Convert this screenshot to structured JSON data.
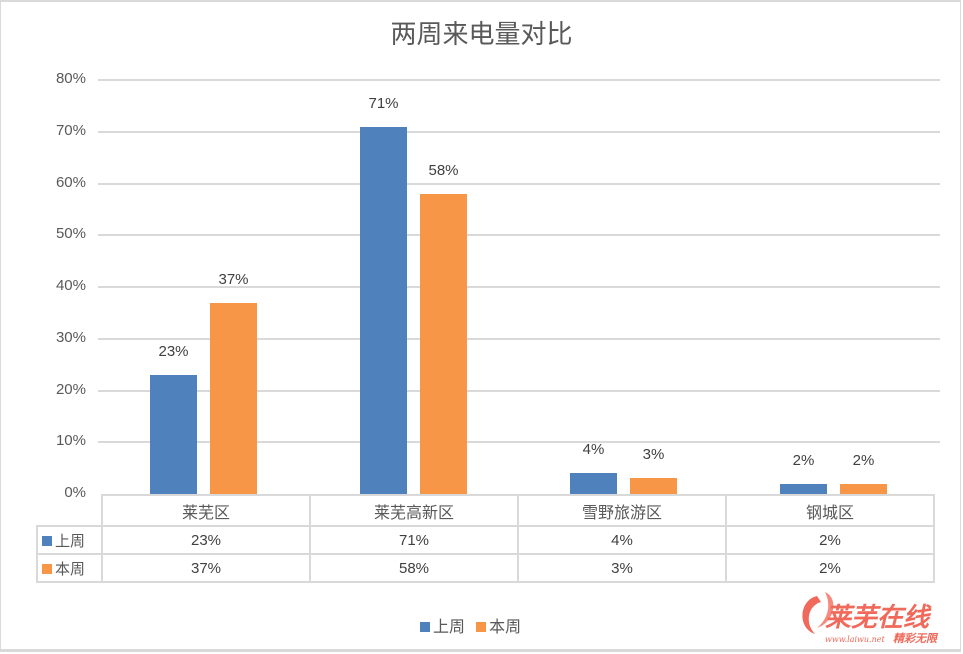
{
  "chart_data": {
    "type": "bar",
    "title": "两周来电量对比",
    "categories": [
      "莱芜区",
      "莱芜高新区",
      "雪野旅游区",
      "钢城区"
    ],
    "series": [
      {
        "name": "上周",
        "color": "#4F81BD",
        "values": [
          23,
          71,
          4,
          2
        ],
        "labels": [
          "23%",
          "71%",
          "4%",
          "2%"
        ]
      },
      {
        "name": "本周",
        "color": "#F79646",
        "values": [
          37,
          58,
          3,
          2
        ],
        "labels": [
          "37%",
          "58%",
          "3%",
          "2%"
        ]
      }
    ],
    "xlabel": "",
    "ylabel": "",
    "ylim": [
      0,
      80
    ],
    "yticks": [
      "0%",
      "10%",
      "20%",
      "30%",
      "40%",
      "50%",
      "60%",
      "70%",
      "80%"
    ],
    "grid": true,
    "legend_position": "bottom",
    "data_table": true
  },
  "legend": [
    {
      "label": "上周",
      "color": "#4F81BD"
    },
    {
      "label": "本周",
      "color": "#F79646"
    }
  ],
  "watermark": {
    "brand": "莱芜在线",
    "url": "www.laiwu.net",
    "slogan": "精彩无限"
  }
}
